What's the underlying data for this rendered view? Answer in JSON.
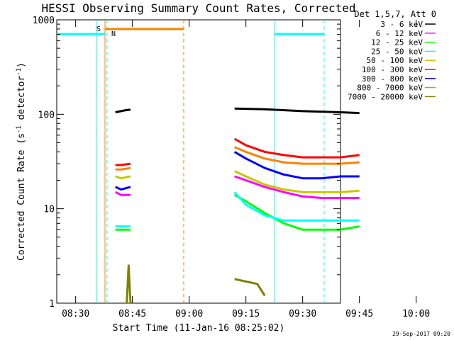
{
  "chart_data": {
    "type": "line",
    "title": "HESSI Observing Summary Count Rates, Corrected",
    "xlabel": "Start Time (11-Jan-16 08:25:02)",
    "ylabel_main": "Corrected Count Rate (s",
    "ylabel_sup1": "-1",
    "ylabel_mid": " detector",
    "ylabel_sup2": "-1",
    "ylabel_end": ")",
    "yscale": "log",
    "ylim": [
      1,
      1000
    ],
    "xlim_min": [
      25.0,
      100.0
    ],
    "x_ticks": [
      {
        "min": 30,
        "label": "08:30"
      },
      {
        "min": 45,
        "label": "08:45"
      },
      {
        "min": 60,
        "label": "09:00"
      },
      {
        "min": 75,
        "label": "09:15"
      },
      {
        "min": 90,
        "label": "09:30"
      },
      {
        "min": 105,
        "label": "09:45"
      },
      {
        "min": 120,
        "label": "10:00"
      }
    ],
    "y_ticks": [
      {
        "value": 1,
        "label": "1"
      },
      {
        "value": 10,
        "label": "10"
      },
      {
        "value": 100,
        "label": "100"
      },
      {
        "value": 1000,
        "label": "1000"
      }
    ],
    "legend_header": "Det 1,5,7, Att 0",
    "legend_placement": "right",
    "footer_date": "29-Sep-2017 09:20",
    "series": [
      {
        "name": "3 - 6 keV",
        "color": "#000000",
        "seg1": [
          [
            40.5,
            105
          ],
          [
            42,
            108
          ],
          [
            43,
            110
          ],
          [
            44.5,
            112
          ]
        ],
        "seg2": [
          [
            72,
            115
          ],
          [
            80,
            113
          ],
          [
            90,
            108
          ],
          [
            100,
            105
          ],
          [
            105,
            103
          ]
        ]
      },
      {
        "name": "6 - 12 keV",
        "color": "#ff00ff",
        "seg1": [
          [
            40.5,
            15
          ],
          [
            42,
            14
          ],
          [
            44.5,
            14
          ]
        ],
        "seg2": [
          [
            72,
            22
          ],
          [
            75,
            20
          ],
          [
            80,
            17
          ],
          [
            85,
            15
          ],
          [
            90,
            13.5
          ],
          [
            95,
            13
          ],
          [
            100,
            13
          ],
          [
            105,
            13
          ]
        ]
      },
      {
        "name": "12 - 25 keV",
        "color": "#00ff00",
        "seg1": [
          [
            40.5,
            6
          ],
          [
            42,
            6
          ],
          [
            44.5,
            6
          ]
        ],
        "seg2": [
          [
            72,
            14
          ],
          [
            75,
            12
          ],
          [
            80,
            9
          ],
          [
            85,
            7
          ],
          [
            90,
            6
          ],
          [
            95,
            6
          ],
          [
            100,
            6
          ],
          [
            105,
            6.5
          ]
        ]
      },
      {
        "name": "25 - 50 keV",
        "color": "#00ffff",
        "seg1": [
          [
            40.5,
            6.5
          ],
          [
            42,
            6.5
          ],
          [
            44.5,
            6.5
          ]
        ],
        "seg2": [
          [
            72,
            15
          ],
          [
            75,
            11
          ],
          [
            80,
            8.5
          ],
          [
            85,
            7.5
          ],
          [
            90,
            7.5
          ],
          [
            95,
            7.5
          ],
          [
            100,
            7.5
          ],
          [
            105,
            7.5
          ]
        ]
      },
      {
        "name": "50 - 100 keV",
        "color": "#c8c800",
        "seg1": [
          [
            40.5,
            22
          ],
          [
            42,
            21
          ],
          [
            44.5,
            22
          ]
        ],
        "seg2": [
          [
            72,
            25
          ],
          [
            75,
            22
          ],
          [
            80,
            18
          ],
          [
            85,
            16
          ],
          [
            90,
            15
          ],
          [
            95,
            15
          ],
          [
            100,
            15
          ],
          [
            105,
            15.5
          ]
        ]
      },
      {
        "name": "100 - 300 keV",
        "color": "#ff0000",
        "seg1": [
          [
            40.5,
            29
          ],
          [
            42,
            29
          ],
          [
            44.5,
            30
          ]
        ],
        "seg2": [
          [
            72,
            55
          ],
          [
            75,
            47
          ],
          [
            80,
            40
          ],
          [
            85,
            37
          ],
          [
            90,
            35
          ],
          [
            95,
            35
          ],
          [
            100,
            35
          ],
          [
            105,
            37
          ]
        ]
      },
      {
        "name": "300 - 800 keV",
        "color": "#0000ff",
        "seg1": [
          [
            40.5,
            17
          ],
          [
            42,
            16
          ],
          [
            44.5,
            17
          ]
        ],
        "seg2": [
          [
            72,
            40
          ],
          [
            75,
            34
          ],
          [
            80,
            27
          ],
          [
            85,
            23
          ],
          [
            90,
            21
          ],
          [
            95,
            21
          ],
          [
            100,
            22
          ],
          [
            105,
            22
          ]
        ]
      },
      {
        "name": "800 - 7000 keV",
        "color": "#ff8000",
        "seg1": [
          [
            40.5,
            26
          ],
          [
            42,
            26
          ],
          [
            44.5,
            27
          ]
        ],
        "seg2": [
          [
            72,
            45
          ],
          [
            75,
            40
          ],
          [
            80,
            34
          ],
          [
            85,
            31
          ],
          [
            90,
            30
          ],
          [
            95,
            30
          ],
          [
            100,
            30
          ],
          [
            105,
            31
          ]
        ]
      },
      {
        "name": "7000 - 20000 keV",
        "color": "#808000",
        "seg1": [
          [
            43.5,
            1
          ],
          [
            44,
            2.5
          ],
          [
            44.5,
            1
          ]
        ],
        "seg2": [
          [
            72,
            1.8
          ],
          [
            78,
            1.6
          ],
          [
            80,
            1.2
          ]
        ]
      }
    ],
    "flags": [
      {
        "label": "S",
        "color": "#ff8000"
      },
      {
        "label": "N",
        "color": "#00ffff"
      }
    ]
  }
}
